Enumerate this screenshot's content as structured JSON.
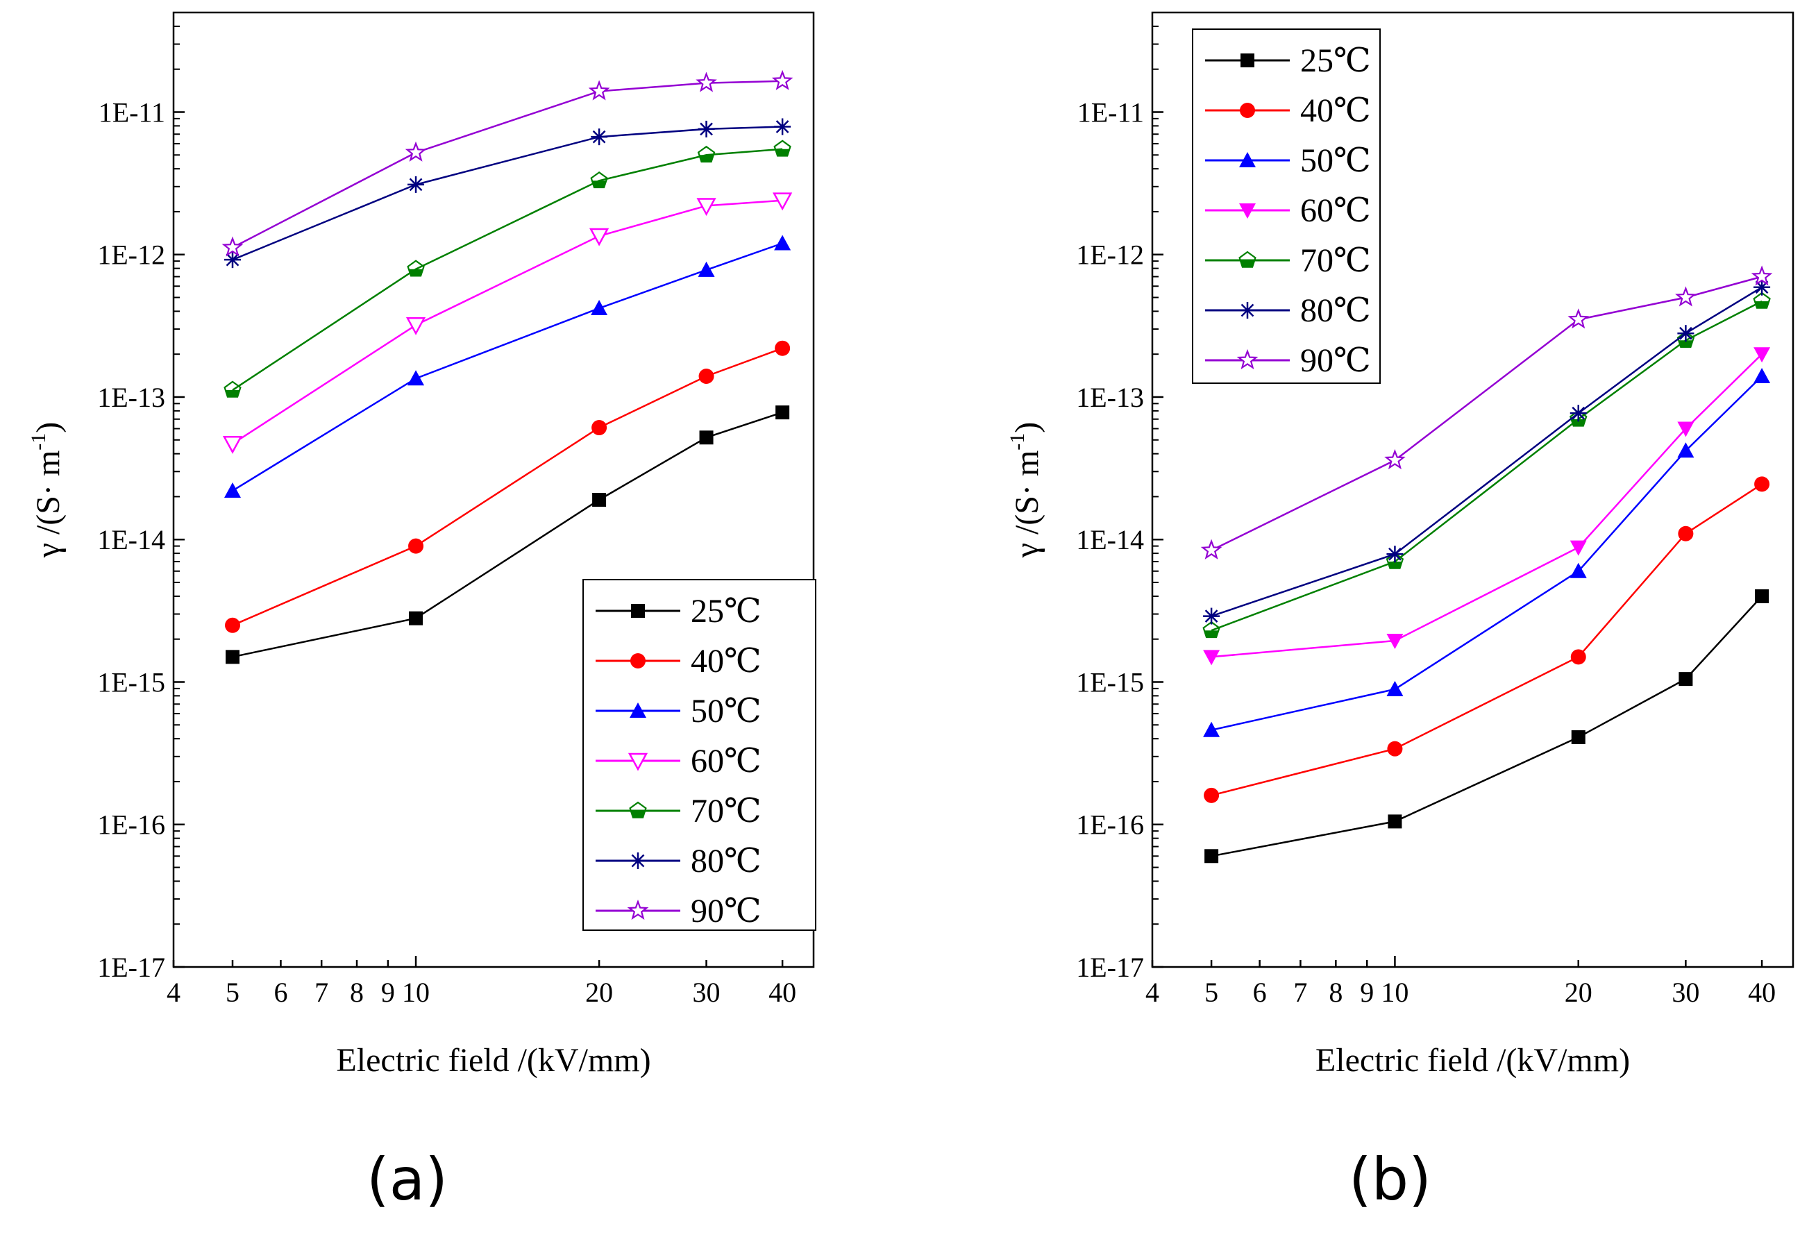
{
  "chart_data": [
    {
      "type": "line",
      "panel_label": "(a)",
      "xscale": "log",
      "yscale": "log",
      "xlim": [
        4,
        45
      ],
      "ylim": [
        1e-17,
        5e-11
      ],
      "xlabel": "Electric field /(kV/mm)",
      "ylabel_main": "γ /(S· m",
      "ylabel_sup": "-1",
      "ylabel_close": ")",
      "xticks": [
        4,
        5,
        6,
        7,
        8,
        9,
        10,
        20,
        30,
        40
      ],
      "xtick_labels": [
        "4",
        "5",
        "6",
        "7",
        "8",
        "9",
        "10",
        "20",
        "30",
        "40"
      ],
      "yticks": [
        1e-17,
        1e-16,
        1e-15,
        1e-14,
        1e-13,
        1e-12,
        1e-11
      ],
      "ytick_labels": [
        "1E-17",
        "1E-16",
        "1E-15",
        "1E-14",
        "1E-13",
        "1E-12",
        "1E-11"
      ],
      "legend_position": "bottom-right",
      "x": [
        5,
        10,
        20,
        30,
        40
      ],
      "series": [
        {
          "name": "25℃",
          "color": "#000000",
          "marker": "square",
          "values": [
            1.5e-15,
            2.8e-15,
            1.9e-14,
            5.2e-14,
            7.8e-14
          ]
        },
        {
          "name": "40℃",
          "color": "#ff0000",
          "marker": "circle",
          "values": [
            2.5e-15,
            9e-15,
            6.1e-14,
            1.4e-13,
            2.2e-13
          ]
        },
        {
          "name": "50℃",
          "color": "#0000ff",
          "marker": "triangle-up",
          "values": [
            2.2e-14,
            1.35e-13,
            4.2e-13,
            7.8e-13,
            1.2e-12
          ]
        },
        {
          "name": "60℃",
          "color": "#ff00ff",
          "marker": "triangle-down-open",
          "values": [
            4.7e-14,
            3.2e-13,
            1.35e-12,
            2.2e-12,
            2.4e-12
          ]
        },
        {
          "name": "70℃",
          "color": "#008000",
          "marker": "pentagon-half",
          "values": [
            1.12e-13,
            7.9e-13,
            3.3e-12,
            5e-12,
            5.5e-12
          ]
        },
        {
          "name": "80℃",
          "color": "#000080",
          "marker": "asterisk",
          "values": [
            9.2e-13,
            3.1e-12,
            6.7e-12,
            7.6e-12,
            7.9e-12
          ]
        },
        {
          "name": "90℃",
          "color": "#9400d3",
          "marker": "star-open",
          "values": [
            1.12e-12,
            5.2e-12,
            1.4e-11,
            1.6e-11,
            1.65e-11
          ]
        }
      ]
    },
    {
      "type": "line",
      "panel_label": "(b)",
      "xscale": "log",
      "yscale": "log",
      "xlim": [
        4,
        45
      ],
      "ylim": [
        1e-17,
        5e-11
      ],
      "xlabel": "Electric field /(kV/mm)",
      "ylabel_main": "γ /(S· m",
      "ylabel_sup": "-1",
      "ylabel_close": ")",
      "xticks": [
        4,
        5,
        6,
        7,
        8,
        9,
        10,
        20,
        30,
        40
      ],
      "xtick_labels": [
        "4",
        "5",
        "6",
        "7",
        "8",
        "9",
        "10",
        "20",
        "30",
        "40"
      ],
      "yticks": [
        1e-17,
        1e-16,
        1e-15,
        1e-14,
        1e-13,
        1e-12,
        1e-11
      ],
      "ytick_labels": [
        "1E-17",
        "1E-16",
        "1E-15",
        "1E-14",
        "1E-13",
        "1E-12",
        "1E-11"
      ],
      "legend_position": "top-left",
      "x": [
        5,
        10,
        20,
        30,
        40
      ],
      "series": [
        {
          "name": "25℃",
          "color": "#000000",
          "marker": "square",
          "values": [
            6e-17,
            1.05e-16,
            4.1e-16,
            1.05e-15,
            4e-15
          ]
        },
        {
          "name": "40℃",
          "color": "#ff0000",
          "marker": "circle",
          "values": [
            1.6e-16,
            3.4e-16,
            1.5e-15,
            1.1e-14,
            2.45e-14
          ]
        },
        {
          "name": "50℃",
          "color": "#0000ff",
          "marker": "triangle-up",
          "values": [
            4.6e-16,
            8.9e-16,
            6e-15,
            4.2e-14,
            1.4e-13
          ]
        },
        {
          "name": "60℃",
          "color": "#ff00ff",
          "marker": "triangle-down-filled",
          "values": [
            1.5e-15,
            1.95e-15,
            8.8e-15,
            6e-14,
            2e-13
          ]
        },
        {
          "name": "70℃",
          "color": "#008000",
          "marker": "pentagon-half",
          "values": [
            2.3e-15,
            7e-15,
            7e-14,
            2.5e-13,
            4.7e-13
          ]
        },
        {
          "name": "80℃",
          "color": "#000080",
          "marker": "asterisk",
          "values": [
            2.9e-15,
            7.9e-15,
            7.7e-14,
            2.8e-13,
            5.9e-13
          ]
        },
        {
          "name": "90℃",
          "color": "#9400d3",
          "marker": "star-open",
          "values": [
            8.4e-15,
            3.6e-14,
            3.5e-13,
            5e-13,
            7e-13
          ]
        }
      ]
    }
  ]
}
